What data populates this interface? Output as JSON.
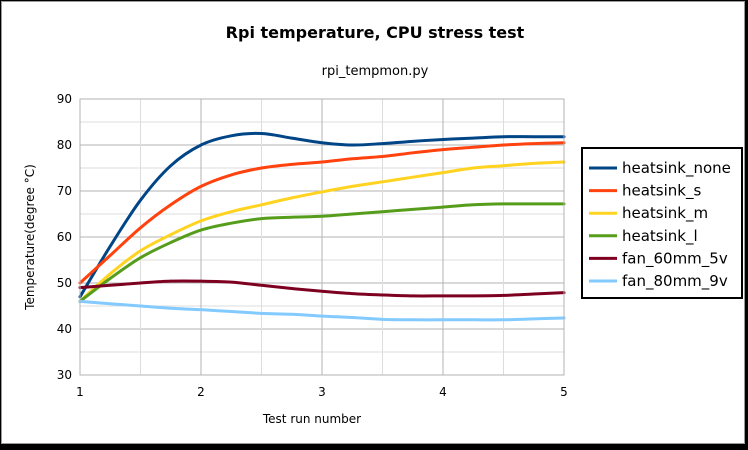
{
  "chart_data": {
    "type": "line",
    "title": "Rpi temperature, CPU stress test",
    "subtitle": "rpi_tempmon.py",
    "xlabel": "Test run number",
    "ylabel": "Temperature(degree °C)",
    "xlim": [
      1,
      5
    ],
    "ylim": [
      30,
      90
    ],
    "xticks": [
      "1",
      "2",
      "3",
      "4",
      "5"
    ],
    "yticks": [
      "30",
      "40",
      "50",
      "60",
      "70",
      "80",
      "90"
    ],
    "grid": true,
    "legend_position": "right",
    "series": [
      {
        "name": "heatsink_none",
        "color": "#004586",
        "points": [
          [
            1,
            47
          ],
          [
            1.25,
            58
          ],
          [
            1.5,
            68
          ],
          [
            1.75,
            75.5
          ],
          [
            2,
            80
          ],
          [
            2.25,
            82
          ],
          [
            2.5,
            82.5
          ],
          [
            2.75,
            81.5
          ],
          [
            3,
            80.5
          ],
          [
            3.25,
            80
          ],
          [
            3.5,
            80.3
          ],
          [
            3.75,
            80.8
          ],
          [
            4,
            81.2
          ],
          [
            4.25,
            81.5
          ],
          [
            4.5,
            81.8
          ],
          [
            4.75,
            81.8
          ],
          [
            5,
            81.8
          ]
        ]
      },
      {
        "name": "heatsink_s",
        "color": "#ff420e",
        "points": [
          [
            1,
            50
          ],
          [
            1.25,
            56
          ],
          [
            1.5,
            62
          ],
          [
            1.75,
            67
          ],
          [
            2,
            71
          ],
          [
            2.25,
            73.5
          ],
          [
            2.5,
            75
          ],
          [
            2.75,
            75.8
          ],
          [
            3,
            76.3
          ],
          [
            3.25,
            77
          ],
          [
            3.5,
            77.5
          ],
          [
            3.75,
            78.3
          ],
          [
            4,
            79
          ],
          [
            4.25,
            79.5
          ],
          [
            4.5,
            80
          ],
          [
            4.75,
            80.3
          ],
          [
            5,
            80.5
          ]
        ]
      },
      {
        "name": "heatsink_m",
        "color": "#ffd320",
        "points": [
          [
            1,
            46
          ],
          [
            1.25,
            52
          ],
          [
            1.5,
            57
          ],
          [
            1.75,
            60.5
          ],
          [
            2,
            63.5
          ],
          [
            2.25,
            65.5
          ],
          [
            2.5,
            67
          ],
          [
            2.75,
            68.5
          ],
          [
            3,
            69.8
          ],
          [
            3.25,
            71
          ],
          [
            3.5,
            72
          ],
          [
            3.75,
            73
          ],
          [
            4,
            74
          ],
          [
            4.25,
            75
          ],
          [
            4.5,
            75.5
          ],
          [
            4.75,
            76
          ],
          [
            5,
            76.3
          ]
        ]
      },
      {
        "name": "heatsink_l",
        "color": "#579d1c",
        "points": [
          [
            1,
            46
          ],
          [
            1.25,
            51
          ],
          [
            1.5,
            55.5
          ],
          [
            1.75,
            58.8
          ],
          [
            2,
            61.5
          ],
          [
            2.25,
            63
          ],
          [
            2.5,
            64
          ],
          [
            2.75,
            64.3
          ],
          [
            3,
            64.5
          ],
          [
            3.25,
            65
          ],
          [
            3.5,
            65.5
          ],
          [
            3.75,
            66
          ],
          [
            4,
            66.5
          ],
          [
            4.25,
            67
          ],
          [
            4.5,
            67.2
          ],
          [
            4.75,
            67.2
          ],
          [
            5,
            67.2
          ]
        ]
      },
      {
        "name": "fan_60mm_5v",
        "color": "#7e0021",
        "points": [
          [
            1,
            49
          ],
          [
            1.25,
            49.5
          ],
          [
            1.5,
            50
          ],
          [
            1.75,
            50.4
          ],
          [
            2,
            50.4
          ],
          [
            2.25,
            50.2
          ],
          [
            2.5,
            49.5
          ],
          [
            2.75,
            48.8
          ],
          [
            3,
            48.2
          ],
          [
            3.25,
            47.7
          ],
          [
            3.5,
            47.4
          ],
          [
            3.75,
            47.2
          ],
          [
            4,
            47.2
          ],
          [
            4.25,
            47.2
          ],
          [
            4.5,
            47.3
          ],
          [
            4.75,
            47.6
          ],
          [
            5,
            47.9
          ]
        ]
      },
      {
        "name": "fan_80mm_9v",
        "color": "#83caff",
        "points": [
          [
            1,
            46
          ],
          [
            1.25,
            45.5
          ],
          [
            1.5,
            45
          ],
          [
            1.75,
            44.5
          ],
          [
            2,
            44.2
          ],
          [
            2.25,
            43.8
          ],
          [
            2.5,
            43.4
          ],
          [
            2.75,
            43.2
          ],
          [
            3,
            42.8
          ],
          [
            3.25,
            42.5
          ],
          [
            3.5,
            42.1
          ],
          [
            3.75,
            42
          ],
          [
            4,
            42
          ],
          [
            4.25,
            42
          ],
          [
            4.5,
            42
          ],
          [
            4.75,
            42.2
          ],
          [
            5,
            42.4
          ]
        ]
      }
    ]
  }
}
